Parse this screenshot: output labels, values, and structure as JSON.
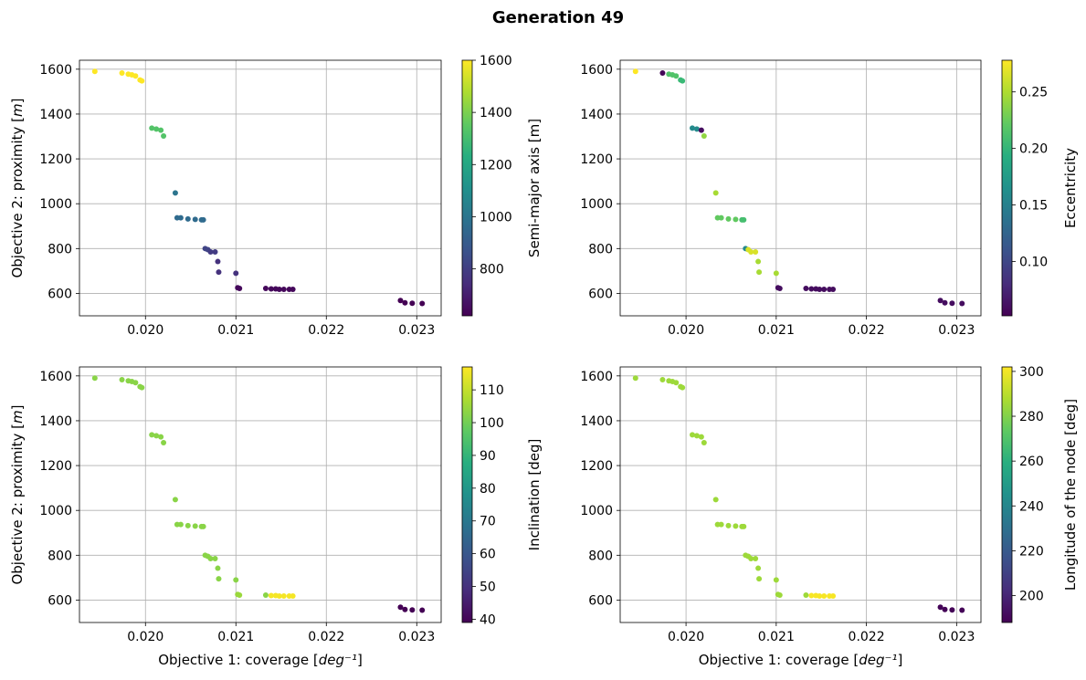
{
  "figure": {
    "title": "Generation 49"
  },
  "chart_data": [
    {
      "type": "scatter",
      "xlabel": "Objective 1: coverage",
      "xlabel_unit": "deg⁻¹",
      "ylabel": "Objective 2: proximity",
      "ylabel_unit": "m",
      "xlim": [
        0.01927,
        0.02327
      ],
      "ylim": [
        500,
        1640
      ],
      "xticks": [
        0.02,
        0.021,
        0.022,
        0.023
      ],
      "xtick_labels": [
        "0.020",
        "0.021",
        "0.022",
        "0.023"
      ],
      "yticks": [
        600,
        800,
        1000,
        1200,
        1400,
        1600
      ],
      "ytick_labels": [
        "600",
        "800",
        "1000",
        "1200",
        "1400",
        "1600"
      ],
      "grid": true,
      "x": [
        0.01944,
        0.01974,
        0.01981,
        0.01985,
        0.01989,
        0.01994,
        0.01996,
        0.02007,
        0.02012,
        0.02017,
        0.0202,
        0.02033,
        0.02035,
        0.02039,
        0.02047,
        0.02055,
        0.02062,
        0.02064,
        0.02066,
        0.02069,
        0.02072,
        0.02077,
        0.0208,
        0.02081,
        0.021,
        0.02102,
        0.02104,
        0.02133,
        0.02139,
        0.02144,
        0.02148,
        0.02153,
        0.02159,
        0.02163,
        0.02282,
        0.02287,
        0.02295,
        0.02306
      ],
      "y": [
        1590,
        1583,
        1578,
        1575,
        1570,
        1552,
        1548,
        1337,
        1333,
        1328,
        1302,
        1048,
        937,
        937,
        932,
        930,
        928,
        928,
        800,
        795,
        785,
        785,
        742,
        695,
        690,
        625,
        622,
        622,
        620,
        620,
        618,
        618,
        618,
        618,
        568,
        558,
        556,
        555
      ],
      "panels": [
        {
          "colorbar_label": "Semi-major axis [m]",
          "clim": [
            620,
            1600
          ],
          "cticks": [
            800,
            1000,
            1200,
            1400,
            1600
          ],
          "ctick_labels": [
            "800",
            "1000",
            "1200",
            "1400",
            "1600"
          ],
          "values": [
            1600,
            1600,
            1600,
            1600,
            1600,
            1600,
            1600,
            1330,
            1330,
            1330,
            1330,
            1000,
            960,
            960,
            960,
            960,
            960,
            960,
            820,
            820,
            790,
            790,
            760,
            760,
            760,
            640,
            640,
            640,
            640,
            640,
            640,
            640,
            640,
            640,
            620,
            620,
            620,
            620
          ]
        },
        {
          "colorbar_label": "Eccentricity",
          "clim": [
            0.052,
            0.278
          ],
          "cticks": [
            0.1,
            0.15,
            0.2,
            0.25
          ],
          "ctick_labels": [
            "0.10",
            "0.15",
            "0.20",
            "0.25"
          ],
          "values": [
            0.278,
            0.055,
            0.215,
            0.215,
            0.215,
            0.205,
            0.205,
            0.16,
            0.16,
            0.06,
            0.24,
            0.248,
            0.222,
            0.222,
            0.222,
            0.222,
            0.21,
            0.21,
            0.16,
            0.265,
            0.265,
            0.265,
            0.248,
            0.248,
            0.248,
            0.06,
            0.06,
            0.06,
            0.06,
            0.06,
            0.06,
            0.06,
            0.06,
            0.06,
            0.06,
            0.06,
            0.06,
            0.06
          ]
        },
        {
          "colorbar_label": "Inclination [deg]",
          "clim": [
            39,
            117
          ],
          "cticks": [
            40,
            50,
            60,
            70,
            80,
            90,
            100,
            110
          ],
          "ctick_labels": [
            "40",
            "50",
            "60",
            "70",
            "80",
            "90",
            "100",
            "110"
          ],
          "values": [
            103,
            103,
            103,
            103,
            103,
            103,
            103,
            103,
            103,
            103,
            103,
            103,
            103,
            103,
            103,
            103,
            103,
            103,
            103,
            103,
            103,
            103,
            103,
            103,
            103,
            105,
            105,
            103,
            116,
            116,
            116,
            116,
            116,
            116,
            39,
            39,
            39,
            39
          ]
        },
        {
          "colorbar_label": "Longitude of the node [deg]",
          "clim": [
            188,
            302
          ],
          "cticks": [
            200,
            220,
            240,
            260,
            280,
            300
          ],
          "ctick_labels": [
            "200",
            "220",
            "240",
            "260",
            "280",
            "300"
          ],
          "values": [
            285,
            285,
            285,
            285,
            285,
            285,
            285,
            285,
            285,
            285,
            285,
            285,
            285,
            285,
            285,
            285,
            285,
            285,
            285,
            285,
            285,
            285,
            285,
            285,
            285,
            285,
            285,
            285,
            301,
            301,
            301,
            301,
            301,
            301,
            189,
            189,
            189,
            189
          ]
        }
      ]
    }
  ]
}
